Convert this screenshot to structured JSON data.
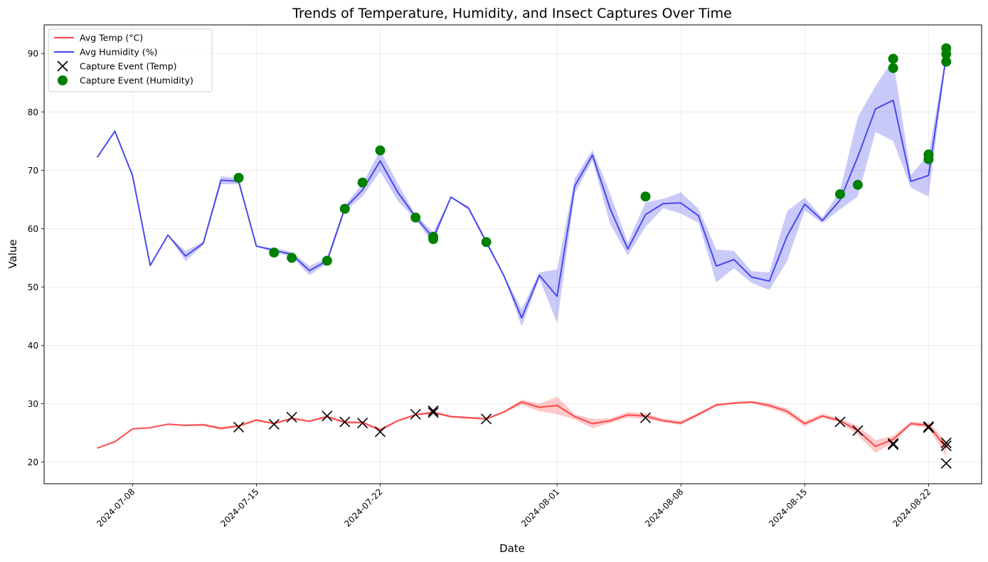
{
  "chart_data": {
    "type": "line",
    "title": "Trends of Temperature, Humidity, and Insect Captures Over Time",
    "xlabel": "Date",
    "ylabel": "Value",
    "xlim": [
      "2024-07-03",
      "2024-08-25"
    ],
    "ylim": [
      16.3,
      94.9
    ],
    "x_ticks": [
      "2024-07-08",
      "2024-07-15",
      "2024-07-22",
      "2024-08-01",
      "2024-08-08",
      "2024-08-15",
      "2024-08-22"
    ],
    "y_ticks": [
      20,
      30,
      40,
      50,
      60,
      70,
      80,
      90
    ],
    "grid": true,
    "legend_position": "top-left",
    "legend": [
      {
        "label": "Avg Temp (°C)",
        "kind": "line",
        "color": "#ff4040"
      },
      {
        "label": "Avg Humidity (%)",
        "kind": "line",
        "color": "#4040ee"
      },
      {
        "label": "Capture Event (Temp)",
        "kind": "x-marker",
        "color": "#000000"
      },
      {
        "label": "Capture Event (Humidity)",
        "kind": "dot-marker",
        "color": "#008000"
      }
    ],
    "dates": [
      "2024-07-06",
      "2024-07-07",
      "2024-07-08",
      "2024-07-09",
      "2024-07-10",
      "2024-07-11",
      "2024-07-12",
      "2024-07-13",
      "2024-07-14",
      "2024-07-15",
      "2024-07-16",
      "2024-07-17",
      "2024-07-18",
      "2024-07-19",
      "2024-07-20",
      "2024-07-21",
      "2024-07-22",
      "2024-07-23",
      "2024-07-24",
      "2024-07-25",
      "2024-07-26",
      "2024-07-27",
      "2024-07-28",
      "2024-07-29",
      "2024-07-30",
      "2024-07-31",
      "2024-08-01",
      "2024-08-02",
      "2024-08-03",
      "2024-08-04",
      "2024-08-05",
      "2024-08-06",
      "2024-08-07",
      "2024-08-08",
      "2024-08-09",
      "2024-08-10",
      "2024-08-11",
      "2024-08-12",
      "2024-08-13",
      "2024-08-14",
      "2024-08-15",
      "2024-08-16",
      "2024-08-17",
      "2024-08-18",
      "2024-08-19",
      "2024-08-20",
      "2024-08-21",
      "2024-08-22",
      "2024-08-23"
    ],
    "series": [
      {
        "name": "Avg Temp (°C)",
        "color": "#ff4040",
        "values": [
          22.4,
          23.5,
          25.7,
          25.9,
          26.5,
          26.3,
          26.4,
          25.8,
          26.2,
          27.2,
          26.6,
          27.5,
          27.0,
          27.8,
          26.8,
          26.8,
          25.5,
          27.1,
          28.1,
          28.5,
          27.8,
          27.6,
          27.4,
          28.6,
          30.3,
          29.4,
          29.7,
          27.8,
          26.6,
          27.1,
          28.1,
          27.9,
          27.1,
          26.7,
          28.2,
          29.8,
          30.1,
          30.3,
          29.7,
          28.7,
          26.6,
          27.9,
          27.1,
          25.4,
          22.7,
          23.9,
          26.6,
          26.3,
          22.4
        ],
        "band_low": [
          22.4,
          23.5,
          25.7,
          25.9,
          26.5,
          26.2,
          26.2,
          25.5,
          26.0,
          27.0,
          26.5,
          27.3,
          26.9,
          27.6,
          26.6,
          26.6,
          25.2,
          27.0,
          28.0,
          28.3,
          27.6,
          27.4,
          27.3,
          28.5,
          29.8,
          28.7,
          28.2,
          27.3,
          25.8,
          26.7,
          27.6,
          27.4,
          26.8,
          26.4,
          27.9,
          29.5,
          30.0,
          30.1,
          29.3,
          28.2,
          26.1,
          27.6,
          26.8,
          24.6,
          21.6,
          23.3,
          26.3,
          25.8,
          20.9
        ],
        "band_high": [
          22.4,
          23.5,
          25.7,
          25.9,
          26.5,
          26.4,
          26.6,
          26.0,
          26.4,
          27.4,
          26.8,
          27.7,
          27.2,
          28.0,
          27.0,
          27.0,
          25.8,
          27.3,
          28.3,
          28.8,
          28.0,
          27.8,
          27.6,
          28.8,
          30.7,
          30.0,
          31.2,
          28.2,
          27.4,
          27.5,
          28.6,
          28.4,
          27.4,
          27.1,
          28.5,
          30.0,
          30.3,
          30.5,
          30.1,
          29.2,
          27.0,
          28.3,
          27.4,
          26.2,
          23.8,
          24.5,
          26.9,
          26.8,
          23.5
        ]
      },
      {
        "name": "Avg Humidity (%)",
        "color": "#4040ee",
        "values": [
          72.2,
          76.7,
          69.1,
          53.7,
          58.9,
          55.3,
          57.5,
          68.3,
          68.1,
          57.0,
          56.3,
          55.6,
          52.8,
          54.5,
          63.5,
          66.6,
          71.6,
          66.2,
          62.0,
          58.4,
          65.4,
          63.5,
          57.7,
          51.9,
          44.7,
          52.0,
          48.4,
          67.3,
          72.6,
          63.4,
          56.5,
          62.4,
          64.3,
          64.4,
          62.2,
          53.6,
          54.7,
          51.7,
          51.0,
          58.7,
          64.2,
          61.4,
          64.9,
          72.3,
          80.5,
          82.0,
          68.1,
          69.1,
          89.6
        ],
        "band_low": [
          72.2,
          76.7,
          69.1,
          53.7,
          58.9,
          54.4,
          57.2,
          67.6,
          67.6,
          57.0,
          55.9,
          55.2,
          52.0,
          54.0,
          63.0,
          65.5,
          69.8,
          64.7,
          61.6,
          57.4,
          65.4,
          63.2,
          57.3,
          51.8,
          43.2,
          51.5,
          43.8,
          66.0,
          71.7,
          60.8,
          55.4,
          60.3,
          63.5,
          62.6,
          61.0,
          50.8,
          53.2,
          50.7,
          49.5,
          54.4,
          63.1,
          60.9,
          63.3,
          65.5,
          76.6,
          75.0,
          67.0,
          65.5,
          89.2
        ],
        "band_high": [
          72.2,
          76.7,
          69.1,
          53.7,
          58.9,
          56.2,
          57.8,
          69.0,
          68.6,
          57.0,
          56.7,
          56.0,
          53.6,
          55.0,
          64.0,
          67.7,
          73.4,
          67.7,
          62.4,
          59.4,
          65.4,
          63.8,
          58.1,
          52.0,
          46.2,
          52.5,
          53.0,
          68.6,
          73.5,
          66.0,
          57.6,
          64.5,
          65.1,
          66.2,
          63.4,
          56.4,
          56.2,
          52.7,
          52.5,
          63.0,
          65.3,
          61.9,
          66.5,
          79.1,
          84.4,
          89.0,
          69.2,
          72.7,
          90.0
        ]
      }
    ],
    "capture_events": [
      {
        "date": "2024-07-14",
        "temp": 26.0,
        "humidity": 68.7
      },
      {
        "date": "2024-07-16",
        "temp": 26.5,
        "humidity": 55.9
      },
      {
        "date": "2024-07-17",
        "temp": 27.7,
        "humidity": 55.0
      },
      {
        "date": "2024-07-19",
        "temp": 27.9,
        "humidity": 54.5
      },
      {
        "date": "2024-07-20",
        "temp": 26.9,
        "humidity": 63.4
      },
      {
        "date": "2024-07-21",
        "temp": 26.7,
        "humidity": 67.9
      },
      {
        "date": "2024-07-22",
        "temp": 25.2,
        "humidity": 73.4
      },
      {
        "date": "2024-07-24",
        "temp": 28.2,
        "humidity": 61.9
      },
      {
        "date": "2024-07-25",
        "temp": 28.5,
        "humidity": 58.2
      },
      {
        "date": "2024-07-25",
        "temp": 28.8,
        "humidity": 58.6
      },
      {
        "date": "2024-07-28",
        "temp": 27.4,
        "humidity": 57.7
      },
      {
        "date": "2024-08-06",
        "temp": 27.6,
        "humidity": 65.5
      },
      {
        "date": "2024-08-17",
        "temp": 26.9,
        "humidity": 65.9
      },
      {
        "date": "2024-08-18",
        "temp": 25.4,
        "humidity": 67.5
      },
      {
        "date": "2024-08-20",
        "temp": 23.0,
        "humidity": 87.5
      },
      {
        "date": "2024-08-20",
        "temp": 23.2,
        "humidity": 89.1
      },
      {
        "date": "2024-08-22",
        "temp": 25.9,
        "humidity": 72.7
      },
      {
        "date": "2024-08-22",
        "temp": 26.1,
        "humidity": 71.9
      },
      {
        "date": "2024-08-23",
        "temp": 19.8,
        "humidity": 88.6
      },
      {
        "date": "2024-08-23",
        "temp": 22.8,
        "humidity": 89.9
      },
      {
        "date": "2024-08-23",
        "temp": 23.3,
        "humidity": 90.9
      }
    ]
  }
}
